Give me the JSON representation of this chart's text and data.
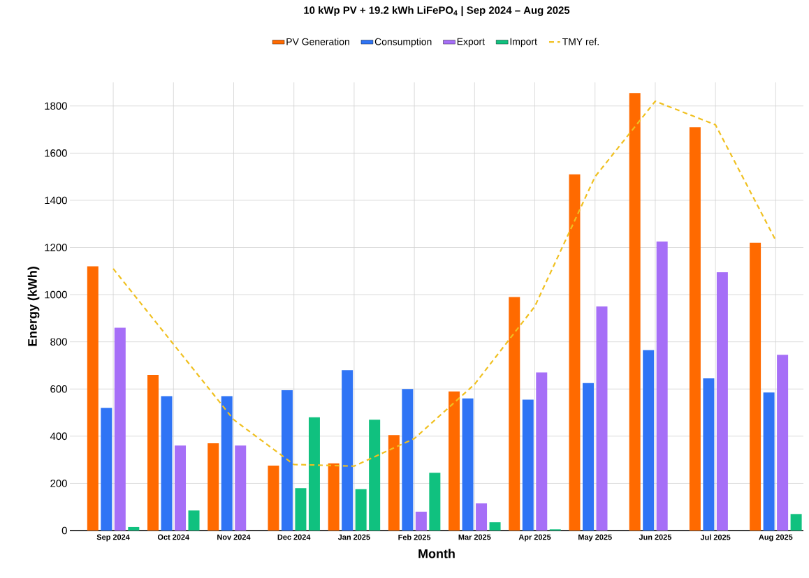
{
  "chart_data": {
    "type": "bar",
    "title": "10 kWp PV + 19.2 kWh LiFePO$_{4}$ | Sep 2024 – Aug 2025",
    "xlabel": "Month",
    "ylabel": "Energy (kWh)",
    "categories": [
      "Sep 2024",
      "Oct 2024",
      "Nov 2024",
      "Dec 2024",
      "Jan 2025",
      "Feb 2025",
      "Mar 2025",
      "Apr 2025",
      "May 2025",
      "Jun 2025",
      "Jul 2025",
      "Aug 2025"
    ],
    "series": [
      {
        "name": "PV Generation",
        "color": "#ff6a00",
        "values": [
          1120,
          660,
          370,
          275,
          285,
          405,
          590,
          990,
          1510,
          1855,
          1710,
          1220
        ]
      },
      {
        "name": "Consumption",
        "color": "#2f74f5",
        "values": [
          520,
          570,
          570,
          595,
          680,
          600,
          560,
          555,
          625,
          765,
          645,
          585
        ]
      },
      {
        "name": "Export",
        "color": "#a66ff7",
        "colors": [
          "#a66ff7",
          "#a66ff7",
          "#a66ff7",
          "#10c17f",
          "#10c17f",
          "#a66ff7",
          "#a66ff7",
          "#a66ff7",
          "#a66ff7",
          "#a66ff7",
          "#a66ff7",
          "#a66ff7"
        ],
        "values": [
          860,
          360,
          360,
          180,
          175,
          80,
          115,
          670,
          950,
          1225,
          1095,
          745
        ]
      },
      {
        "name": "Import",
        "color": "#10c17f",
        "values": [
          15,
          85,
          0,
          480,
          470,
          245,
          35,
          5,
          0,
          0,
          0,
          70
        ]
      },
      {
        "name": "TMY ref.",
        "type": "line",
        "color": "#f0c020",
        "line_style": "dashed",
        "marker": "none",
        "values": [
          1110,
          790,
          470,
          280,
          273,
          390,
          620,
          950,
          1500,
          1820,
          1720,
          1230
        ]
      }
    ],
    "ylim": [
      0,
      1900
    ],
    "yticks": [
      0,
      200,
      400,
      600,
      800,
      1000,
      1200,
      1400,
      1600,
      1800
    ],
    "grid": true,
    "legend": "top"
  }
}
